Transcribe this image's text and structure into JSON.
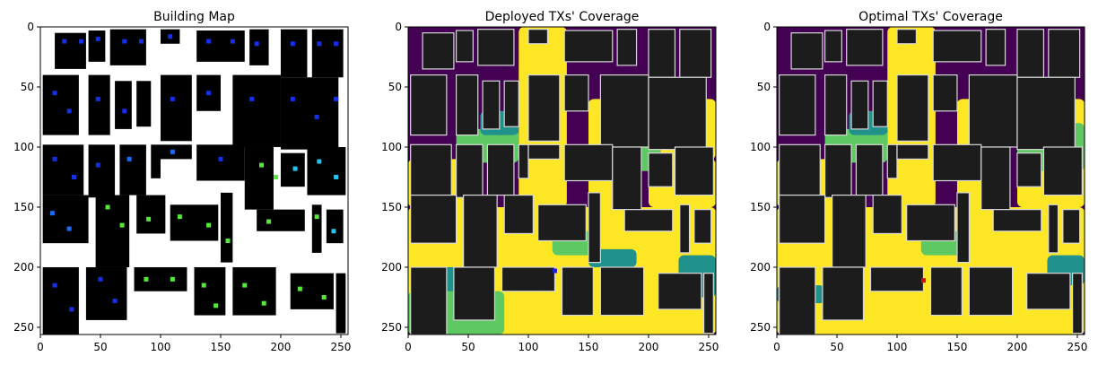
{
  "chart_data": [
    {
      "type": "heatmap",
      "title": "Building Map",
      "xlim": [
        0,
        256
      ],
      "ylim": [
        256,
        0
      ],
      "xticks": [
        0,
        50,
        100,
        150,
        200,
        250
      ],
      "yticks": [
        0,
        50,
        100,
        150,
        200,
        250
      ],
      "background": "#ffffff",
      "building_color": "#000000",
      "marker_colors": [
        "#1530e8",
        "#1a6cf0",
        "#22c4f0",
        "#55e83a"
      ],
      "buildings": [
        [
          12,
          5,
          26,
          30
        ],
        [
          40,
          3,
          14,
          26
        ],
        [
          58,
          2,
          30,
          30
        ],
        [
          100,
          2,
          16,
          12
        ],
        [
          130,
          3,
          40,
          26
        ],
        [
          174,
          2,
          16,
          30
        ],
        [
          200,
          2,
          22,
          40
        ],
        [
          226,
          2,
          26,
          40
        ],
        [
          2,
          40,
          30,
          50
        ],
        [
          40,
          40,
          18,
          50
        ],
        [
          62,
          45,
          14,
          40
        ],
        [
          80,
          45,
          12,
          38
        ],
        [
          100,
          40,
          26,
          55
        ],
        [
          130,
          40,
          20,
          30
        ],
        [
          160,
          40,
          40,
          60
        ],
        [
          200,
          42,
          48,
          60
        ],
        [
          2,
          98,
          34,
          42
        ],
        [
          40,
          98,
          22,
          44
        ],
        [
          66,
          98,
          22,
          42
        ],
        [
          92,
          98,
          8,
          28
        ],
        [
          100,
          98,
          26,
          12
        ],
        [
          130,
          98,
          40,
          30
        ],
        [
          170,
          100,
          24,
          52
        ],
        [
          200,
          105,
          20,
          28
        ],
        [
          222,
          100,
          32,
          40
        ],
        [
          2,
          140,
          38,
          40
        ],
        [
          46,
          140,
          28,
          60
        ],
        [
          80,
          140,
          24,
          32
        ],
        [
          108,
          148,
          40,
          30
        ],
        [
          150,
          138,
          10,
          58
        ],
        [
          180,
          152,
          40,
          18
        ],
        [
          226,
          148,
          8,
          40
        ],
        [
          238,
          152,
          14,
          28
        ],
        [
          2,
          200,
          30,
          56
        ],
        [
          38,
          200,
          34,
          44
        ],
        [
          78,
          200,
          44,
          20
        ],
        [
          128,
          200,
          26,
          40
        ],
        [
          160,
          200,
          36,
          40
        ],
        [
          208,
          205,
          36,
          30
        ],
        [
          246,
          205,
          8,
          50
        ]
      ],
      "markers": [
        [
          20,
          12,
          0
        ],
        [
          34,
          12,
          0
        ],
        [
          48,
          10,
          0
        ],
        [
          70,
          12,
          0
        ],
        [
          84,
          12,
          0
        ],
        [
          108,
          8,
          0
        ],
        [
          140,
          12,
          0
        ],
        [
          160,
          12,
          0
        ],
        [
          180,
          14,
          0
        ],
        [
          210,
          14,
          0
        ],
        [
          232,
          14,
          0
        ],
        [
          246,
          14,
          0
        ],
        [
          12,
          55,
          0
        ],
        [
          24,
          70,
          0
        ],
        [
          48,
          60,
          0
        ],
        [
          70,
          70,
          0
        ],
        [
          110,
          60,
          0
        ],
        [
          140,
          55,
          0
        ],
        [
          176,
          60,
          0
        ],
        [
          210,
          60,
          0
        ],
        [
          230,
          75,
          0
        ],
        [
          246,
          60,
          0
        ],
        [
          12,
          110,
          0
        ],
        [
          28,
          125,
          0
        ],
        [
          48,
          115,
          0
        ],
        [
          74,
          110,
          1
        ],
        [
          110,
          104,
          1
        ],
        [
          150,
          110,
          0
        ],
        [
          184,
          115,
          3
        ],
        [
          196,
          125,
          3
        ],
        [
          212,
          118,
          2
        ],
        [
          232,
          112,
          2
        ],
        [
          246,
          125,
          2
        ],
        [
          10,
          155,
          1
        ],
        [
          24,
          168,
          1
        ],
        [
          56,
          150,
          3
        ],
        [
          68,
          165,
          3
        ],
        [
          90,
          160,
          3
        ],
        [
          116,
          158,
          3
        ],
        [
          140,
          165,
          3
        ],
        [
          156,
          178,
          3
        ],
        [
          190,
          162,
          3
        ],
        [
          230,
          158,
          3
        ],
        [
          244,
          170,
          2
        ],
        [
          12,
          215,
          0
        ],
        [
          26,
          235,
          0
        ],
        [
          50,
          210,
          0
        ],
        [
          62,
          228,
          0
        ],
        [
          88,
          210,
          3
        ],
        [
          110,
          210,
          3
        ],
        [
          136,
          215,
          3
        ],
        [
          146,
          232,
          3
        ],
        [
          170,
          215,
          3
        ],
        [
          186,
          230,
          3
        ],
        [
          216,
          218,
          3
        ],
        [
          236,
          225,
          3
        ]
      ]
    },
    {
      "type": "heatmap",
      "title": "Deployed TXs' Coverage",
      "xlim": [
        0,
        256
      ],
      "ylim": [
        256,
        0
      ],
      "xticks": [
        0,
        50,
        100,
        150,
        200,
        250
      ],
      "yticks": [
        0,
        50,
        100,
        150,
        200,
        250
      ],
      "colors": {
        "none": "#440154",
        "low": "#21918c",
        "mid": "#5ec962",
        "high": "#fde725",
        "building": "#1c1c1c",
        "outline": "#d8d8d8"
      },
      "coverage_regions": [
        [
          "high",
          0,
          150,
          256,
          106
        ],
        [
          "high",
          92,
          0,
          40,
          150
        ],
        [
          "high",
          150,
          60,
          30,
          90
        ],
        [
          "high",
          0,
          110,
          60,
          40
        ],
        [
          "high",
          200,
          110,
          56,
          40
        ],
        [
          "high",
          210,
          60,
          46,
          50
        ],
        [
          "mid",
          40,
          85,
          52,
          28
        ],
        [
          "mid",
          180,
          95,
          30,
          25
        ],
        [
          "mid",
          0,
          220,
          80,
          36
        ],
        [
          "low",
          180,
          60,
          30,
          35
        ],
        [
          "low",
          60,
          70,
          32,
          20
        ],
        [
          "low",
          225,
          190,
          31,
          35
        ],
        [
          "low",
          20,
          200,
          50,
          20
        ],
        [
          "mid",
          120,
          170,
          40,
          20
        ],
        [
          "low",
          150,
          185,
          40,
          15
        ]
      ],
      "tx_marker": {
        "x": 122,
        "y": 203,
        "color": "#2020d0"
      }
    },
    {
      "type": "heatmap",
      "title": "Optimal TXs' Coverage",
      "xlim": [
        0,
        256
      ],
      "ylim": [
        256,
        0
      ],
      "xticks": [
        0,
        50,
        100,
        150,
        200,
        250
      ],
      "yticks": [
        0,
        50,
        100,
        150,
        200,
        250
      ],
      "colors": {
        "none": "#440154",
        "low": "#21918c",
        "mid": "#5ec962",
        "high": "#fde725",
        "building": "#1c1c1c",
        "outline": "#d8d8d8"
      },
      "coverage_regions": [
        [
          "high",
          0,
          150,
          256,
          106
        ],
        [
          "high",
          92,
          0,
          40,
          150
        ],
        [
          "high",
          150,
          60,
          30,
          90
        ],
        [
          "high",
          0,
          110,
          60,
          40
        ],
        [
          "high",
          200,
          110,
          56,
          40
        ],
        [
          "high",
          210,
          60,
          46,
          50
        ],
        [
          "mid",
          40,
          85,
          52,
          28
        ],
        [
          "mid",
          200,
          80,
          56,
          40
        ],
        [
          "high",
          0,
          215,
          256,
          41
        ],
        [
          "low",
          180,
          60,
          30,
          35
        ],
        [
          "low",
          60,
          70,
          32,
          20
        ],
        [
          "low",
          0,
          215,
          40,
          15
        ],
        [
          "mid",
          120,
          170,
          40,
          20
        ],
        [
          "low",
          225,
          190,
          31,
          25
        ]
      ],
      "tx_marker": {
        "x": 122,
        "y": 211,
        "color": "#d01010"
      }
    }
  ]
}
